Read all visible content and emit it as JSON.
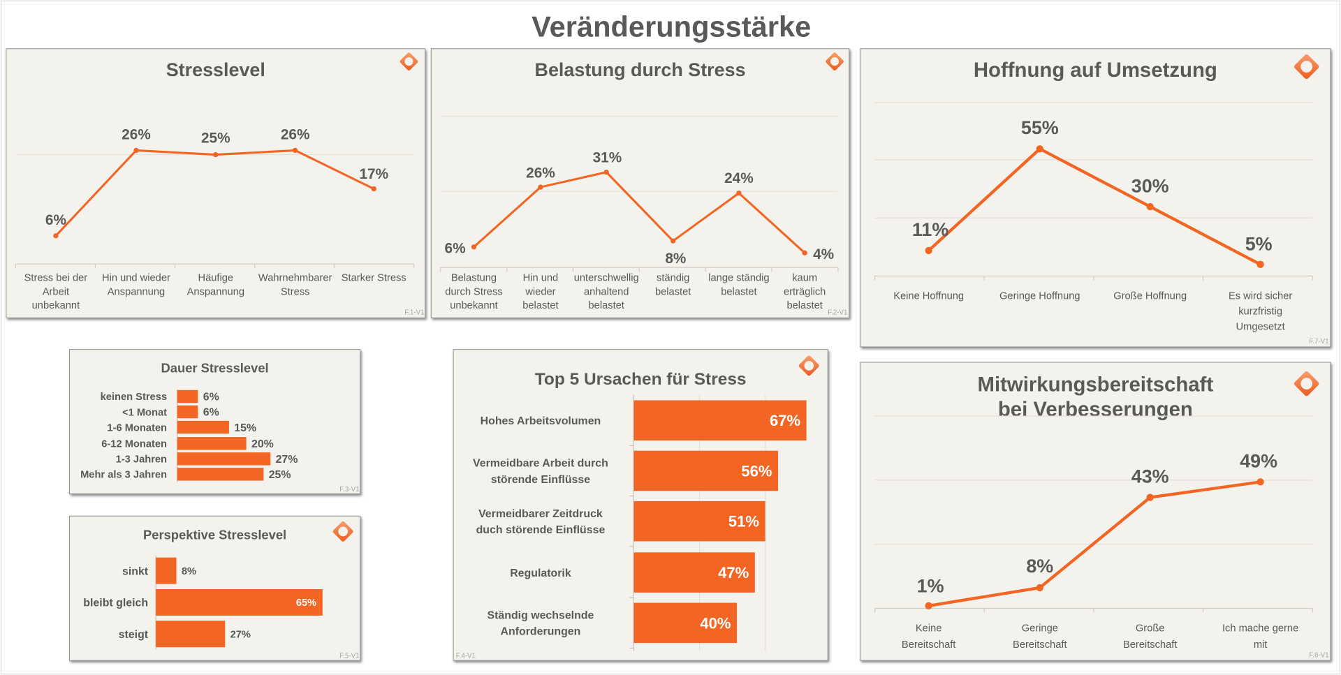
{
  "page_title": "Veränderungsstärke",
  "colors": {
    "accent": "#f26522",
    "panel": "#f4f2ec",
    "text": "#595959",
    "grid": "#e3e0d8"
  },
  "logo_icon": "orange-diamond-ring-logo",
  "chart_data": [
    {
      "id": "stresslevel",
      "type": "line",
      "title": "Stresslevel",
      "footnote": "F.1-V1",
      "categories": [
        "Stress bei der\nArbeit\nunbekannt",
        "Hin und wieder\nAnspannung",
        "Häufige\nAnspannung",
        "Wahrnehmbarer\nStress",
        "Starker Stress"
      ],
      "values": [
        6,
        26,
        25,
        26,
        17
      ],
      "unit": "%",
      "grid": true
    },
    {
      "id": "belastung",
      "type": "line",
      "title": "Belastung durch Stress",
      "footnote": "F.2-V1",
      "categories": [
        "Belastung\ndurch Stress\nunbekannt",
        "Hin und\nwieder\nbelastet",
        "unterschwellig\nanhaltend\nbelastet",
        "ständig\nbelastet",
        "lange ständig\nbelastet",
        "kaum\nerträglich\nbelastet"
      ],
      "values": [
        6,
        26,
        31,
        8,
        24,
        4
      ],
      "unit": "%",
      "grid": true
    },
    {
      "id": "hoffnung",
      "type": "line",
      "title": "Hoffnung auf Umsetzung",
      "footnote": "F.7-V1",
      "categories": [
        "Keine Hoffnung",
        "Geringe Hoffnung",
        "Große Hoffnung",
        "Es wird sicher\nkurzfristig\nUmgesetzt"
      ],
      "values": [
        11,
        55,
        30,
        5
      ],
      "unit": "%",
      "grid": true
    },
    {
      "id": "mitwirkung",
      "type": "line",
      "title": "Mitwirkungsbereitschaft\nbei Verbesserungen",
      "footnote": "F.8-V1",
      "categories": [
        "Keine\nBereitschaft",
        "Geringe\nBereitschaft",
        "Große\nBereitschaft",
        "Ich mache gerne\nmit"
      ],
      "values": [
        1,
        8,
        43,
        49
      ],
      "unit": "%",
      "grid": true
    },
    {
      "id": "dauer",
      "type": "bar",
      "orientation": "horizontal",
      "title": "Dauer Stresslevel",
      "footnote": "F.3-V1",
      "categories": [
        "keinen Stress",
        "<1 Monat",
        "1-6 Monaten",
        "6-12 Monaten",
        "1-3 Jahren",
        "Mehr als 3 Jahren"
      ],
      "values": [
        6,
        6,
        15,
        20,
        27,
        25
      ],
      "unit": "%"
    },
    {
      "id": "perspektive",
      "type": "bar",
      "orientation": "horizontal",
      "title": "Perspektive Stresslevel",
      "footnote": "F.5-V1",
      "categories": [
        "sinkt",
        "bleibt gleich",
        "steigt"
      ],
      "values": [
        8,
        65,
        27
      ],
      "unit": "%"
    },
    {
      "id": "ursachen",
      "type": "bar",
      "orientation": "horizontal",
      "title": "Top 5 Ursachen für Stress",
      "footnote": "F.4-V1",
      "categories": [
        "Hohes Arbeitsvolumen",
        "Vermeidbare Arbeit durch\nstörende Einflüsse",
        "Vermeidbarer Zeitdruck\nduch störende Einflüsse",
        "Regulatorik",
        "Ständig wechselnde\nAnforderungen"
      ],
      "values": [
        67,
        56,
        51,
        47,
        40
      ],
      "unit": "%",
      "grid": true
    }
  ]
}
